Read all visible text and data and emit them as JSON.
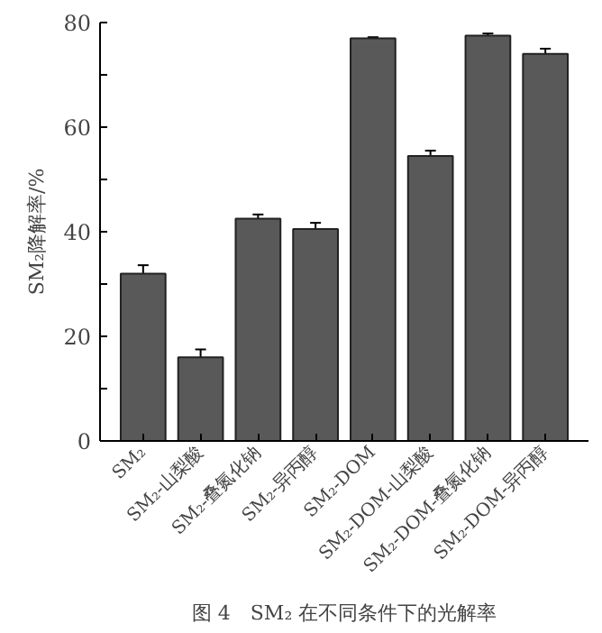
{
  "chart_data": {
    "type": "bar",
    "ylabel": "SM₂降解率/%",
    "categories": [
      "SM₂",
      "SM₂-山梨酸",
      "SM₂-叠氮化钠",
      "SM₂-异丙醇",
      "SM₂-DOM",
      "SM₂-DOM-山梨酸",
      "SM₂-DOM-叠氮化钠",
      "SM₂-DOM-异丙醇"
    ],
    "values": [
      32,
      16,
      42.5,
      40.5,
      77,
      54.5,
      77.5,
      74
    ],
    "errors": [
      1.6,
      1.5,
      0.8,
      1.2,
      0.2,
      1,
      0.4,
      1
    ],
    "color": "#595959",
    "ylim": [
      0,
      80
    ],
    "yticks": [
      0,
      {
        "value": 10,
        "label": null
      },
      20,
      {
        "value": 30,
        "label": null
      },
      40,
      {
        "value": 50,
        "label": null
      },
      60,
      {
        "value": 70,
        "label": null
      },
      80
    ],
    "grid": false,
    "annotations": [
      "图 4　SM₂ 在不同条件下的光解率"
    ]
  }
}
